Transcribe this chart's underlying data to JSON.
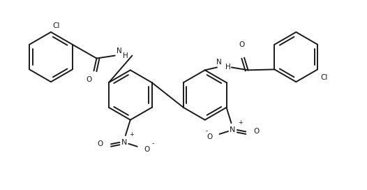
{
  "bg_color": "#ffffff",
  "line_color": "#1a1a1a",
  "line_width": 1.4,
  "figsize": [
    5.26,
    2.72
  ],
  "dpi": 100,
  "xlim": [
    0,
    10.52
  ],
  "ylim": [
    0,
    5.44
  ],
  "font_size": 7.5
}
